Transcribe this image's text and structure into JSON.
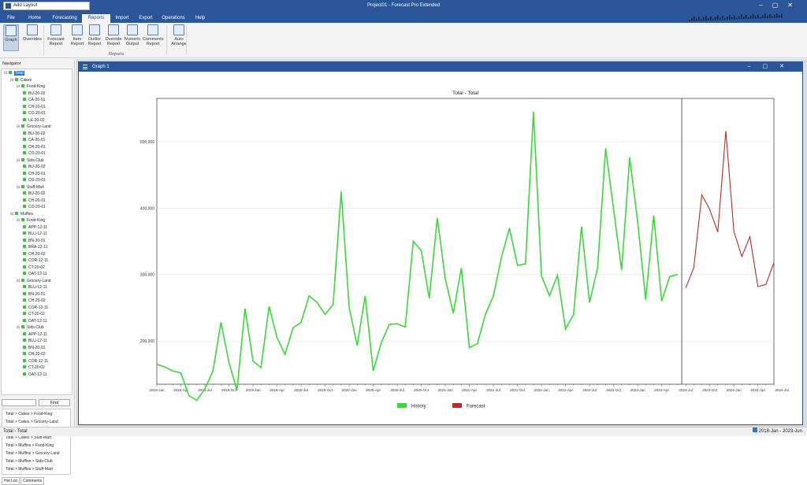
{
  "app": {
    "title": "Project01 - Forecast Pro Extended",
    "quick_access": "Add Layout"
  },
  "tabs": [
    "File",
    "Home",
    "Forecasting",
    "Reports",
    "Import",
    "Export",
    "Operations",
    "Help"
  ],
  "active_tab": "Reports",
  "ribbon": {
    "buttons": [
      {
        "l1": "Graph",
        "l2": "",
        "icon": "graph-icon"
      },
      {
        "l1": "Overrides",
        "l2": "",
        "icon": "overrides-icon"
      },
      {
        "l1": "Forecast",
        "l2": "Report",
        "icon": "forecast-report-icon"
      },
      {
        "l1": "Item",
        "l2": "Report",
        "icon": "item-report-icon"
      },
      {
        "l1": "Outlier",
        "l2": "Report",
        "icon": "outlier-report-icon"
      },
      {
        "l1": "Override",
        "l2": "Report",
        "icon": "override-report-icon"
      },
      {
        "l1": "Numeric",
        "l2": "Output",
        "icon": "numeric-output-icon"
      },
      {
        "l1": "Comments",
        "l2": "Report",
        "icon": "comments-report-icon"
      },
      {
        "l1": "Auto",
        "l2": "Arrange",
        "icon": "auto-arrange-icon"
      }
    ],
    "group_label": "Reports"
  },
  "navigator": {
    "title": "Navigator",
    "tree": [
      {
        "label": "Total",
        "level": 0,
        "exp": "⊟",
        "sel": true
      },
      {
        "label": "Cakes",
        "level": 1,
        "exp": "⊟"
      },
      {
        "label": "Food-King",
        "level": 2,
        "exp": "⊟"
      },
      {
        "label": "BU-20-02",
        "level": 3
      },
      {
        "label": "CA-20-01",
        "level": 3
      },
      {
        "label": "CH-20-01",
        "level": 3
      },
      {
        "label": "CO-20-01",
        "level": 3
      },
      {
        "label": "LE-20-02",
        "level": 3
      },
      {
        "label": "Grocery-Land",
        "level": 2,
        "exp": "⊟"
      },
      {
        "label": "BU-20-02",
        "level": 3
      },
      {
        "label": "CA-20-01",
        "level": 3
      },
      {
        "label": "CH-20-01",
        "level": 3
      },
      {
        "label": "CO-20-01",
        "level": 3
      },
      {
        "label": "Sids-Club",
        "level": 2,
        "exp": "⊟"
      },
      {
        "label": "BU-20-02",
        "level": 3
      },
      {
        "label": "CH-20-01",
        "level": 3
      },
      {
        "label": "CO-20-01",
        "level": 3
      },
      {
        "label": "Stuff-Mart",
        "level": 2,
        "exp": "⊟"
      },
      {
        "label": "BU-20-02",
        "level": 3
      },
      {
        "label": "CH-20-01",
        "level": 3
      },
      {
        "label": "CO-20-01",
        "level": 3
      },
      {
        "label": "Muffins",
        "level": 1,
        "exp": "⊟"
      },
      {
        "label": "Food-King",
        "level": 2,
        "exp": "⊟"
      },
      {
        "label": "APP-12-11",
        "level": 3
      },
      {
        "label": "BLU-12-11",
        "level": 3
      },
      {
        "label": "BN-20-01",
        "level": 3
      },
      {
        "label": "BRA-12-11",
        "level": 3
      },
      {
        "label": "CH-20-02",
        "level": 3
      },
      {
        "label": "COR-12-11",
        "level": 3
      },
      {
        "label": "CT-20-02",
        "level": 3
      },
      {
        "label": "OAT-12-11",
        "level": 3
      },
      {
        "label": "Grocery-Land",
        "level": 2,
        "exp": "⊟"
      },
      {
        "label": "BLU-12-11",
        "level": 3
      },
      {
        "label": "BN-20-01",
        "level": 3
      },
      {
        "label": "CH-20-02",
        "level": 3
      },
      {
        "label": "COR-12-11",
        "level": 3
      },
      {
        "label": "CT-20-02",
        "level": 3
      },
      {
        "label": "OAT-12-11",
        "level": 3
      },
      {
        "label": "Sids-Club",
        "level": 2,
        "exp": "⊟"
      },
      {
        "label": "APP-12-11",
        "level": 3
      },
      {
        "label": "BLU-12-11",
        "level": 3
      },
      {
        "label": "BN-20-01",
        "level": 3
      },
      {
        "label": "CH-20-02",
        "level": 3
      },
      {
        "label": "COR-12-11",
        "level": 3
      },
      {
        "label": "CT-20-02",
        "level": 3
      },
      {
        "label": "OAT-12-11",
        "level": 3
      }
    ],
    "find_button": "Find",
    "hotlist": [
      "Total > Cakes > Food-King",
      "Total > Cakes > Grocery-Land",
      "Total > Cakes > Sids-Club",
      "Total > Cakes > Stuff-Mart",
      "Total > Muffins > Food-King",
      "Total > Muffins > Grocery-Land",
      "Total > Muffins > Sids-Club",
      "Total > Muffins > Stuff-Mart"
    ],
    "bottom_tabs": [
      "Hot List",
      "Comments"
    ]
  },
  "graph_window": {
    "title": "Graph 1"
  },
  "chart_data": {
    "type": "line",
    "title": "Total - Total",
    "xlabel": "",
    "ylabel": "",
    "ylim": [
      135000,
      565000
    ],
    "yticks": [
      200000,
      300000,
      400000,
      500000
    ],
    "ytick_labels": [
      "200,000",
      "300,000",
      "400,000",
      "500,000"
    ],
    "grid": true,
    "legend": "bottom",
    "x_start": "2018-Jan",
    "xtick_labels": [
      "2018-Jan",
      "2018-Apr",
      "2018-Jul",
      "2018-Oct",
      "2019-Jan",
      "2019-Apr",
      "2019-Jul",
      "2019-Oct",
      "2020-Jan",
      "2020-Apr",
      "2020-Jul",
      "2020-Oct",
      "2021-Jan",
      "2021-Apr",
      "2021-Jul",
      "2021-Oct",
      "2022-Jan",
      "2022-Apr",
      "2022-Jul",
      "2022-Oct",
      "2023-Jan",
      "2023-Apr",
      "2023-Jul",
      "2023-Oct",
      "2024-Jan",
      "2024-Apr",
      "2024-Jul"
    ],
    "series": [
      {
        "name": "History",
        "color": "#33dd33",
        "start": "2018-Jan",
        "values": [
          165000,
          161000,
          155000,
          152000,
          118000,
          111000,
          128000,
          155000,
          228000,
          168000,
          126000,
          249000,
          170000,
          160000,
          252000,
          205000,
          180000,
          220000,
          228000,
          268000,
          258000,
          240000,
          255000,
          425000,
          250000,
          193000,
          268000,
          155000,
          197000,
          225000,
          226000,
          221000,
          350000,
          336000,
          264000,
          385000,
          293000,
          242000,
          310000,
          190000,
          196000,
          240000,
          268000,
          326000,
          370000,
          314000,
          316000,
          545000,
          298000,
          268000,
          299000,
          218000,
          240000,
          372000,
          258000,
          310000,
          490000,
          398000,
          307000,
          476000,
          380000,
          262000,
          389000,
          260000,
          297000,
          300000
        ]
      },
      {
        "name": "Forecast",
        "color": "#c02828",
        "start": "2023-Jul",
        "values": [
          280000,
          310000,
          420000,
          398000,
          364000,
          516000,
          365000,
          327000,
          357000,
          282000,
          285000,
          318000
        ]
      }
    ],
    "divider_at": "2023-Jul",
    "x_end": "2024-Jun"
  },
  "status": {
    "left": "Total - Total",
    "right": "2018-Jan - 2023-Jun"
  }
}
